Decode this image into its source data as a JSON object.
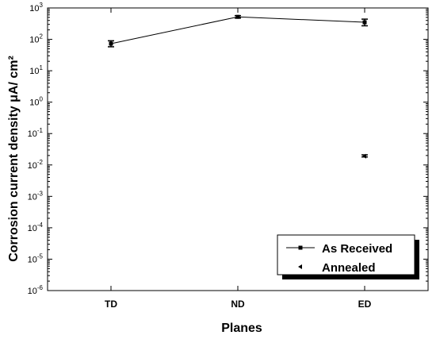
{
  "chart_data": {
    "type": "line",
    "y_scale": "log",
    "ylim": [
      1e-06,
      1000
    ],
    "y_ticks": [
      {
        "value": 1e-06,
        "base": "10",
        "exp": "-6"
      },
      {
        "value": 1e-05,
        "base": "10",
        "exp": "-5"
      },
      {
        "value": 0.0001,
        "base": "10",
        "exp": "-4"
      },
      {
        "value": 0.001,
        "base": "10",
        "exp": "-3"
      },
      {
        "value": 0.01,
        "base": "10",
        "exp": "-2"
      },
      {
        "value": 0.1,
        "base": "10",
        "exp": "-1"
      },
      {
        "value": 1,
        "base": "10",
        "exp": "0"
      },
      {
        "value": 10,
        "base": "10",
        "exp": "1"
      },
      {
        "value": 100,
        "base": "10",
        "exp": "2"
      },
      {
        "value": 1000,
        "base": "10",
        "exp": "3"
      }
    ],
    "categories": [
      "TD",
      "ND",
      "ED"
    ],
    "xlabel": "Planes",
    "ylabel": "Corrosion current density μA/ cm²",
    "grid": false,
    "legend_position": "bottom-right",
    "series": [
      {
        "name": "As Received",
        "marker": "square",
        "line": true,
        "color": "#000000",
        "points": [
          {
            "category": "TD",
            "y": 73,
            "err_low": 58,
            "err_high": 90
          },
          {
            "category": "ND",
            "y": 520,
            "err_low": 475,
            "err_high": 570
          },
          {
            "category": "ED",
            "y": 350,
            "err_low": 270,
            "err_high": 440
          }
        ]
      },
      {
        "name": "Annealed",
        "marker": "triangle-left",
        "line": false,
        "color": "#000000",
        "points": [
          {
            "category": "ED",
            "y": 0.019,
            "err_low": 0.018,
            "err_high": 0.021
          }
        ]
      }
    ]
  }
}
